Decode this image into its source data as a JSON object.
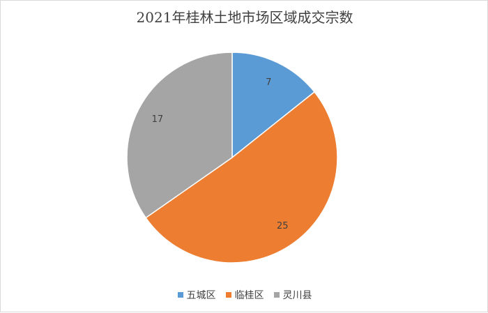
{
  "chart_data": {
    "type": "pie",
    "title": "2021年桂林土地市场区域成交宗数",
    "categories": [
      "五城区",
      "临桂区",
      "灵川县"
    ],
    "values": [
      7,
      25,
      17
    ],
    "colors": [
      "#5b9bd5",
      "#ed7d31",
      "#a5a5a5"
    ],
    "start_angle_deg": 0,
    "direction": "clockwise",
    "data_labels": true,
    "legend_position": "bottom"
  }
}
